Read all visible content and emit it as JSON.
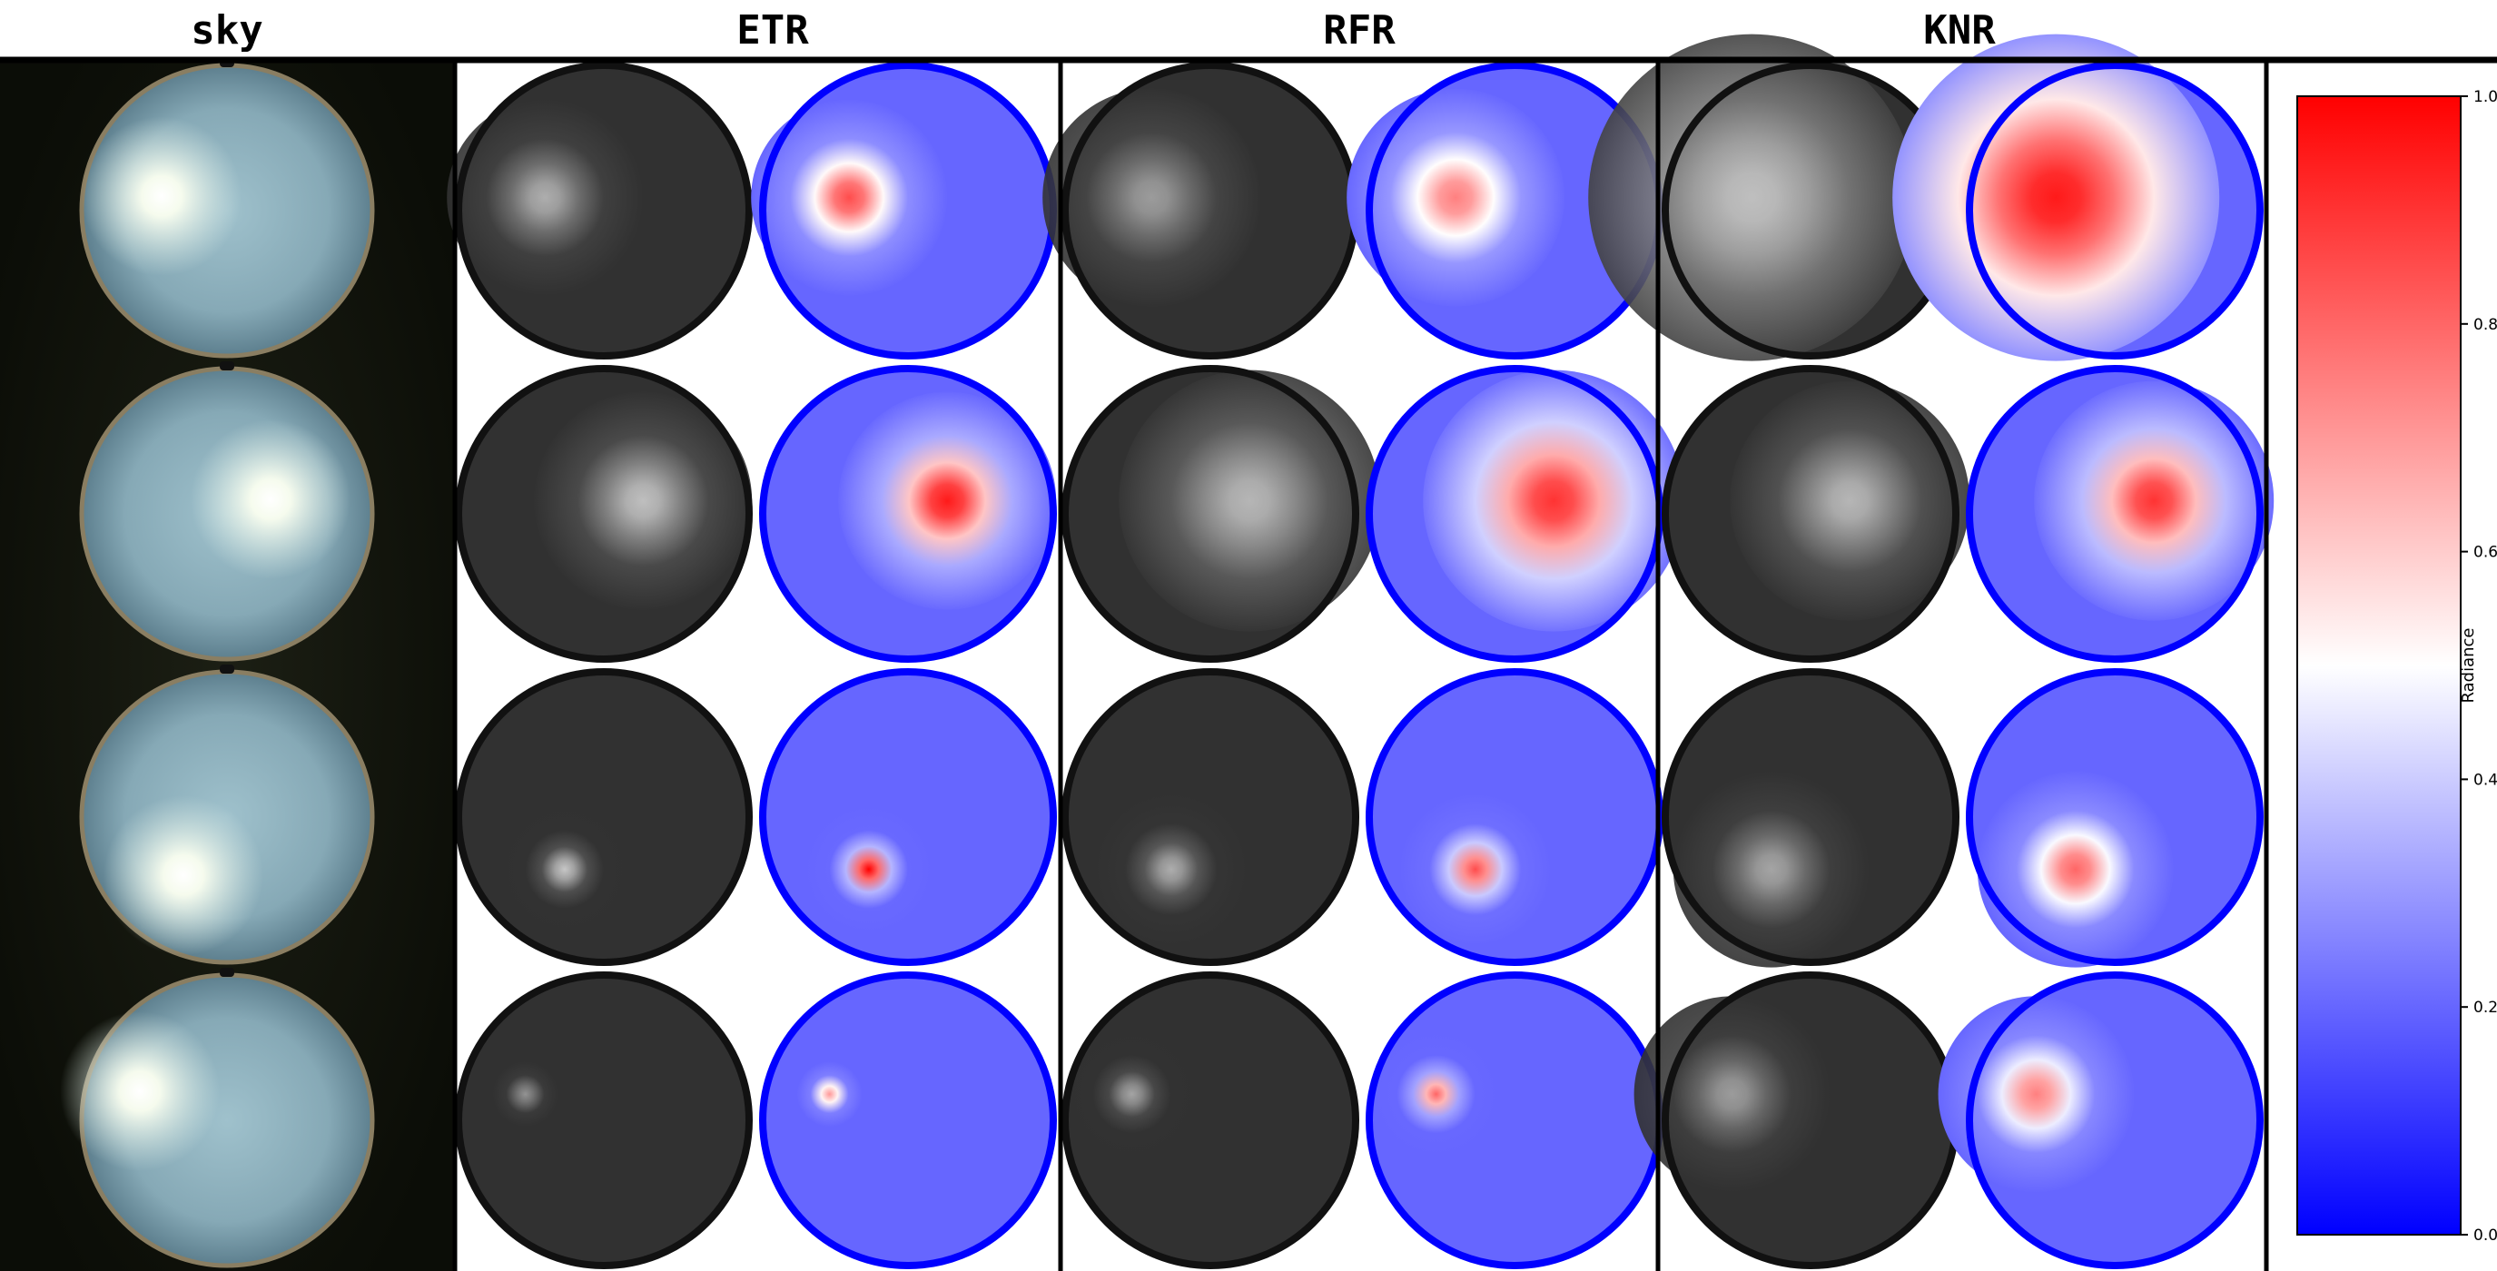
{
  "chart_data": {
    "type": "heatmap",
    "columns": [
      "sky",
      "ETR",
      "RFR",
      "KNR"
    ],
    "rows": 4,
    "colorbar": {
      "label": "Radiance",
      "range": [
        0.0,
        1.0
      ],
      "ticks": [
        "0.0",
        "0.2",
        "0.4",
        "0.6",
        "0.8",
        "1.0"
      ],
      "colormap": "bwr",
      "low_color": "#0000ff",
      "mid_color": "#ffffff",
      "high_color": "#ff0000"
    },
    "sun_positions": [
      {
        "row": 1,
        "x": -0.45,
        "y": 0.1
      },
      {
        "row": 2,
        "x": 0.3,
        "y": 0.1
      },
      {
        "row": 3,
        "x": -0.3,
        "y": -0.4
      },
      {
        "row": 4,
        "x": -0.6,
        "y": 0.2
      }
    ],
    "panels": [
      {
        "row": 1,
        "model": "ETR",
        "max_radiance": 0.85,
        "spread": 0.9
      },
      {
        "row": 1,
        "model": "RFR",
        "max_radiance": 0.75,
        "spread": 1.0
      },
      {
        "row": 1,
        "model": "KNR",
        "max_radiance": 0.95,
        "spread": 1.5
      },
      {
        "row": 2,
        "model": "ETR",
        "max_radiance": 0.95,
        "spread": 1.0
      },
      {
        "row": 2,
        "model": "RFR",
        "max_radiance": 0.9,
        "spread": 1.2
      },
      {
        "row": 2,
        "model": "KNR",
        "max_radiance": 0.9,
        "spread": 1.1
      },
      {
        "row": 3,
        "model": "ETR",
        "max_radiance": 1.0,
        "spread": 0.6
      },
      {
        "row": 3,
        "model": "RFR",
        "max_radiance": 0.85,
        "spread": 0.7
      },
      {
        "row": 3,
        "model": "KNR",
        "max_radiance": 0.8,
        "spread": 0.9
      },
      {
        "row": 4,
        "model": "ETR",
        "max_radiance": 0.7,
        "spread": 0.5
      },
      {
        "row": 4,
        "model": "RFR",
        "max_radiance": 0.8,
        "spread": 0.6
      },
      {
        "row": 4,
        "model": "KNR",
        "max_radiance": 0.75,
        "spread": 0.9
      }
    ]
  }
}
